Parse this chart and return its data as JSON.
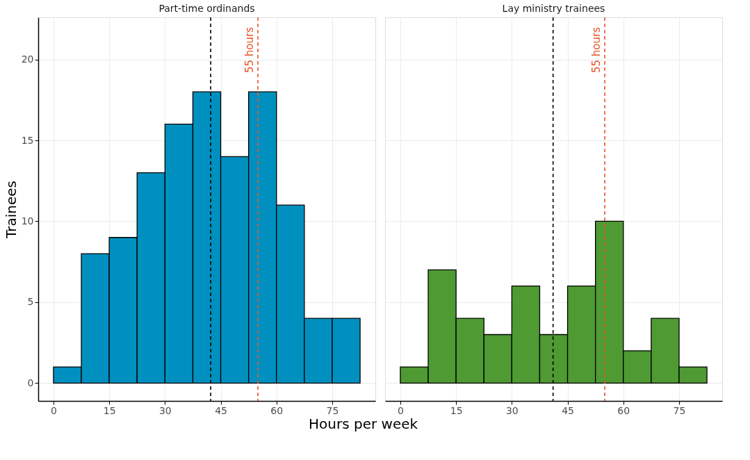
{
  "chart_data": [
    {
      "type": "histogram",
      "title": "Part-time ordinands",
      "xlabel": "Hours per week",
      "ylabel": "Trainees",
      "bins": [
        0,
        7.5,
        15,
        22.5,
        30,
        37.5,
        45,
        52.5,
        60,
        67.5,
        75,
        82.5
      ],
      "values": [
        1,
        8,
        9,
        13,
        16,
        18,
        14,
        18,
        11,
        4,
        4
      ],
      "color": "#0090bf",
      "xlim": [
        -4.1,
        86.6
      ],
      "xticks": [
        0,
        15,
        30,
        45,
        60,
        75
      ],
      "ylim": [
        -1.1,
        22.6
      ],
      "yticks": [
        0,
        5,
        10,
        15,
        20
      ],
      "grid": true,
      "ref_lines": [
        {
          "axis": "x",
          "value": 42.3,
          "color": "#000000",
          "line_style": "dashed"
        },
        {
          "axis": "x",
          "value": 55,
          "label": "55 hours",
          "color": "#e8532a",
          "line_style": "dashed"
        }
      ]
    },
    {
      "type": "histogram",
      "title": "Lay ministry trainees",
      "bins": [
        0,
        7.5,
        15,
        22.5,
        30,
        37.5,
        45,
        52.5,
        60,
        67.5,
        75,
        82.5
      ],
      "values": [
        1,
        7,
        4,
        3,
        6,
        3,
        6,
        10,
        2,
        4,
        1
      ],
      "color": "#4f9a33",
      "xlim": [
        -4.1,
        86.6
      ],
      "xticks": [
        0,
        15,
        30,
        45,
        60,
        75
      ],
      "ylim": [
        -1.1,
        22.6
      ],
      "yticks": [
        0,
        5,
        10,
        15,
        20
      ],
      "grid": true,
      "tick_labels": "x",
      "ref_lines": [
        {
          "axis": "x",
          "value": 41.1,
          "color": "#000000",
          "line_style": "dashed"
        },
        {
          "axis": "x",
          "value": 55,
          "label": "55 hours",
          "color": "#e8532a",
          "line_style": "dashed"
        }
      ]
    }
  ]
}
